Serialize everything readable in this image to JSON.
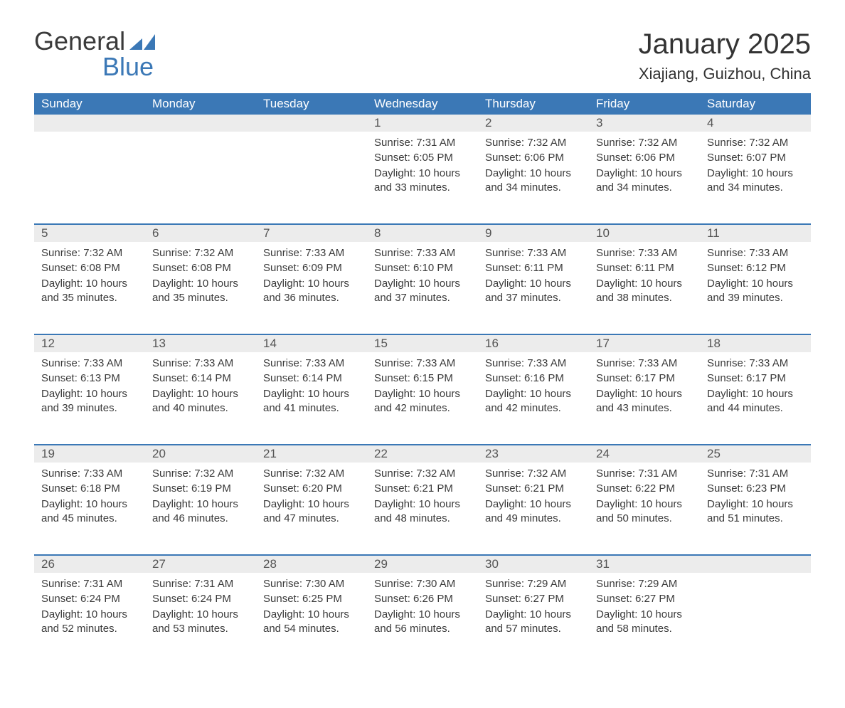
{
  "brand": {
    "word1": "General",
    "word2": "Blue",
    "color": "#3b78b6"
  },
  "header": {
    "month": "January 2025",
    "location": "Xiajiang, Guizhou, China"
  },
  "colors": {
    "header_bg": "#3b78b6",
    "header_text": "#ffffff",
    "daynum_bg": "#ececec",
    "border": "#3b78b6",
    "text": "#3a3a3a",
    "background": "#ffffff"
  },
  "fonts": {
    "title_size_pt": 30,
    "location_size_pt": 17,
    "weekday_size_pt": 13,
    "body_size_pt": 11
  },
  "weekdays": [
    "Sunday",
    "Monday",
    "Tuesday",
    "Wednesday",
    "Thursday",
    "Friday",
    "Saturday"
  ],
  "weeks": [
    [
      null,
      null,
      null,
      {
        "n": "1",
        "sunrise": "Sunrise: 7:31 AM",
        "sunset": "Sunset: 6:05 PM",
        "daylight": "Daylight: 10 hours and 33 minutes."
      },
      {
        "n": "2",
        "sunrise": "Sunrise: 7:32 AM",
        "sunset": "Sunset: 6:06 PM",
        "daylight": "Daylight: 10 hours and 34 minutes."
      },
      {
        "n": "3",
        "sunrise": "Sunrise: 7:32 AM",
        "sunset": "Sunset: 6:06 PM",
        "daylight": "Daylight: 10 hours and 34 minutes."
      },
      {
        "n": "4",
        "sunrise": "Sunrise: 7:32 AM",
        "sunset": "Sunset: 6:07 PM",
        "daylight": "Daylight: 10 hours and 34 minutes."
      }
    ],
    [
      {
        "n": "5",
        "sunrise": "Sunrise: 7:32 AM",
        "sunset": "Sunset: 6:08 PM",
        "daylight": "Daylight: 10 hours and 35 minutes."
      },
      {
        "n": "6",
        "sunrise": "Sunrise: 7:32 AM",
        "sunset": "Sunset: 6:08 PM",
        "daylight": "Daylight: 10 hours and 35 minutes."
      },
      {
        "n": "7",
        "sunrise": "Sunrise: 7:33 AM",
        "sunset": "Sunset: 6:09 PM",
        "daylight": "Daylight: 10 hours and 36 minutes."
      },
      {
        "n": "8",
        "sunrise": "Sunrise: 7:33 AM",
        "sunset": "Sunset: 6:10 PM",
        "daylight": "Daylight: 10 hours and 37 minutes."
      },
      {
        "n": "9",
        "sunrise": "Sunrise: 7:33 AM",
        "sunset": "Sunset: 6:11 PM",
        "daylight": "Daylight: 10 hours and 37 minutes."
      },
      {
        "n": "10",
        "sunrise": "Sunrise: 7:33 AM",
        "sunset": "Sunset: 6:11 PM",
        "daylight": "Daylight: 10 hours and 38 minutes."
      },
      {
        "n": "11",
        "sunrise": "Sunrise: 7:33 AM",
        "sunset": "Sunset: 6:12 PM",
        "daylight": "Daylight: 10 hours and 39 minutes."
      }
    ],
    [
      {
        "n": "12",
        "sunrise": "Sunrise: 7:33 AM",
        "sunset": "Sunset: 6:13 PM",
        "daylight": "Daylight: 10 hours and 39 minutes."
      },
      {
        "n": "13",
        "sunrise": "Sunrise: 7:33 AM",
        "sunset": "Sunset: 6:14 PM",
        "daylight": "Daylight: 10 hours and 40 minutes."
      },
      {
        "n": "14",
        "sunrise": "Sunrise: 7:33 AM",
        "sunset": "Sunset: 6:14 PM",
        "daylight": "Daylight: 10 hours and 41 minutes."
      },
      {
        "n": "15",
        "sunrise": "Sunrise: 7:33 AM",
        "sunset": "Sunset: 6:15 PM",
        "daylight": "Daylight: 10 hours and 42 minutes."
      },
      {
        "n": "16",
        "sunrise": "Sunrise: 7:33 AM",
        "sunset": "Sunset: 6:16 PM",
        "daylight": "Daylight: 10 hours and 42 minutes."
      },
      {
        "n": "17",
        "sunrise": "Sunrise: 7:33 AM",
        "sunset": "Sunset: 6:17 PM",
        "daylight": "Daylight: 10 hours and 43 minutes."
      },
      {
        "n": "18",
        "sunrise": "Sunrise: 7:33 AM",
        "sunset": "Sunset: 6:17 PM",
        "daylight": "Daylight: 10 hours and 44 minutes."
      }
    ],
    [
      {
        "n": "19",
        "sunrise": "Sunrise: 7:33 AM",
        "sunset": "Sunset: 6:18 PM",
        "daylight": "Daylight: 10 hours and 45 minutes."
      },
      {
        "n": "20",
        "sunrise": "Sunrise: 7:32 AM",
        "sunset": "Sunset: 6:19 PM",
        "daylight": "Daylight: 10 hours and 46 minutes."
      },
      {
        "n": "21",
        "sunrise": "Sunrise: 7:32 AM",
        "sunset": "Sunset: 6:20 PM",
        "daylight": "Daylight: 10 hours and 47 minutes."
      },
      {
        "n": "22",
        "sunrise": "Sunrise: 7:32 AM",
        "sunset": "Sunset: 6:21 PM",
        "daylight": "Daylight: 10 hours and 48 minutes."
      },
      {
        "n": "23",
        "sunrise": "Sunrise: 7:32 AM",
        "sunset": "Sunset: 6:21 PM",
        "daylight": "Daylight: 10 hours and 49 minutes."
      },
      {
        "n": "24",
        "sunrise": "Sunrise: 7:31 AM",
        "sunset": "Sunset: 6:22 PM",
        "daylight": "Daylight: 10 hours and 50 minutes."
      },
      {
        "n": "25",
        "sunrise": "Sunrise: 7:31 AM",
        "sunset": "Sunset: 6:23 PM",
        "daylight": "Daylight: 10 hours and 51 minutes."
      }
    ],
    [
      {
        "n": "26",
        "sunrise": "Sunrise: 7:31 AM",
        "sunset": "Sunset: 6:24 PM",
        "daylight": "Daylight: 10 hours and 52 minutes."
      },
      {
        "n": "27",
        "sunrise": "Sunrise: 7:31 AM",
        "sunset": "Sunset: 6:24 PM",
        "daylight": "Daylight: 10 hours and 53 minutes."
      },
      {
        "n": "28",
        "sunrise": "Sunrise: 7:30 AM",
        "sunset": "Sunset: 6:25 PM",
        "daylight": "Daylight: 10 hours and 54 minutes."
      },
      {
        "n": "29",
        "sunrise": "Sunrise: 7:30 AM",
        "sunset": "Sunset: 6:26 PM",
        "daylight": "Daylight: 10 hours and 56 minutes."
      },
      {
        "n": "30",
        "sunrise": "Sunrise: 7:29 AM",
        "sunset": "Sunset: 6:27 PM",
        "daylight": "Daylight: 10 hours and 57 minutes."
      },
      {
        "n": "31",
        "sunrise": "Sunrise: 7:29 AM",
        "sunset": "Sunset: 6:27 PM",
        "daylight": "Daylight: 10 hours and 58 minutes."
      },
      null
    ]
  ]
}
